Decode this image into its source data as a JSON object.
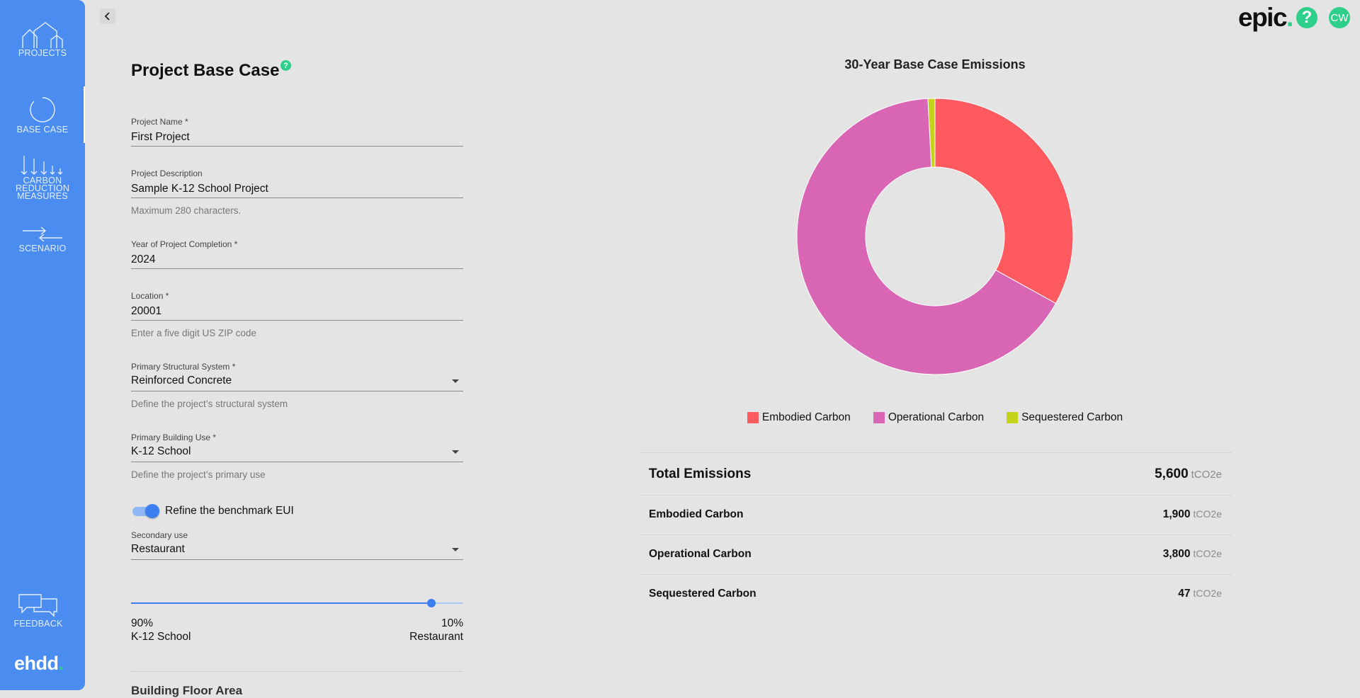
{
  "sidebar": {
    "items": [
      {
        "label": "PROJECTS",
        "icon": "house-icon"
      },
      {
        "label": "BASE CASE",
        "icon": "circle-icon"
      },
      {
        "label_lines": [
          "CARBON",
          "REDUCTION",
          "MEASURES"
        ],
        "icon": "down-arrows-icon"
      },
      {
        "label": "SCENARIO",
        "icon": "exchange-arrows-icon"
      },
      {
        "label": "FEEDBACK",
        "icon": "chat-bubbles-icon"
      }
    ],
    "active": "BASE CASE",
    "logo": {
      "text": "ehdd",
      "dot": "."
    }
  },
  "header": {
    "brand": {
      "text": "epic",
      "dot": "."
    },
    "help": "?",
    "avatar": "CW"
  },
  "form": {
    "title": "Project Base Case",
    "title_help": "?",
    "project_name": {
      "label": "Project Name *",
      "value": "First Project"
    },
    "project_description": {
      "label": "Project Description",
      "value": "Sample K-12 School Project",
      "helper": "Maximum 280 characters."
    },
    "year": {
      "label": "Year of Project Completion *",
      "value": "2024"
    },
    "location": {
      "label": "Location *",
      "value": "20001",
      "helper": "Enter a five digit US ZIP code"
    },
    "structural_system": {
      "label": "Primary Structural System *",
      "value": "Reinforced Concrete",
      "helper": "Define the project’s structural system"
    },
    "building_use": {
      "label": "Primary Building Use *",
      "value": "K-12 School",
      "helper": "Define the project’s primary use"
    },
    "refine_toggle": {
      "label": "Refine the benchmark EUI",
      "on": true
    },
    "secondary_use": {
      "label": "Secondary use",
      "value": "Restaurant"
    },
    "mix_slider": {
      "primary_percent": 90,
      "left_percent_label": "90%",
      "left_name": "K-12 School",
      "right_percent_label": "10%",
      "right_name": "Restaurant"
    },
    "next_section_heading": "Building Floor Area"
  },
  "chart_data": {
    "type": "pie",
    "title": "30-Year Base Case Emissions",
    "donut": true,
    "categories": [
      "Embodied Carbon",
      "Operational Carbon",
      "Sequestered Carbon"
    ],
    "values": [
      1900,
      3800,
      47
    ],
    "colors": [
      "#ff5a5f",
      "#d966b4",
      "#c4d41c"
    ],
    "legend_position": "bottom"
  },
  "emissions": {
    "unit": "tCO2e",
    "total": {
      "label": "Total Emissions",
      "value": "5,600"
    },
    "rows": [
      {
        "label": "Embodied Carbon",
        "value": "1,900"
      },
      {
        "label": "Operational Carbon",
        "value": "3,800"
      },
      {
        "label": "Sequestered Carbon",
        "value": "47"
      }
    ]
  }
}
